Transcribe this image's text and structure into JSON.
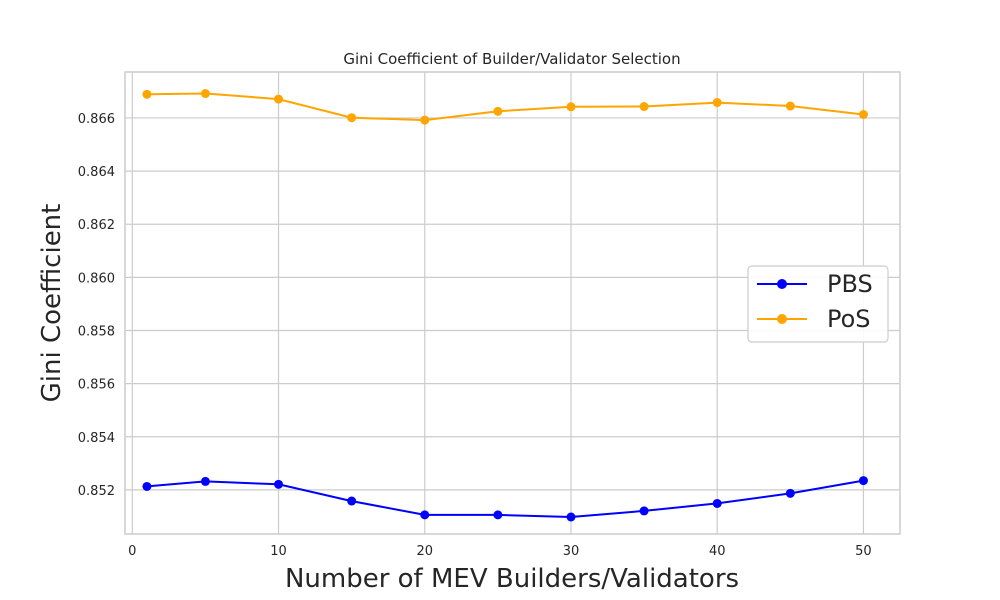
{
  "chart_data": {
    "type": "line",
    "title": "Gini Coefficient of Builder/Validator Selection",
    "xlabel": "Number of MEV Builders/Validators",
    "ylabel": "Gini Coefficient",
    "x": [
      1,
      5,
      10,
      15,
      20,
      25,
      30,
      35,
      40,
      45,
      50
    ],
    "xlim": [
      -0.5,
      52.5
    ],
    "ylim": [
      0.85034,
      0.86773
    ],
    "xticks": [
      0,
      10,
      20,
      30,
      40,
      50
    ],
    "xtick_labels": [
      "0",
      "10",
      "20",
      "30",
      "40",
      "50"
    ],
    "yticks": [
      0.852,
      0.854,
      0.856,
      0.858,
      0.86,
      0.862,
      0.864,
      0.866
    ],
    "ytick_labels": [
      "0.852",
      "0.854",
      "0.856",
      "0.858",
      "0.860",
      "0.862",
      "0.864",
      "0.866"
    ],
    "grid": true,
    "legend_position": "center-right",
    "series": [
      {
        "name": "PBS",
        "color": "#0000ff",
        "values": [
          0.85213,
          0.85232,
          0.85221,
          0.85158,
          0.85106,
          0.85106,
          0.85098,
          0.85121,
          0.85149,
          0.85187,
          0.85235
        ]
      },
      {
        "name": "PoS",
        "color": "#ffa500",
        "values": [
          0.86689,
          0.86692,
          0.86671,
          0.86601,
          0.86592,
          0.86625,
          0.86642,
          0.86643,
          0.86658,
          0.86645,
          0.86613
        ]
      }
    ]
  }
}
